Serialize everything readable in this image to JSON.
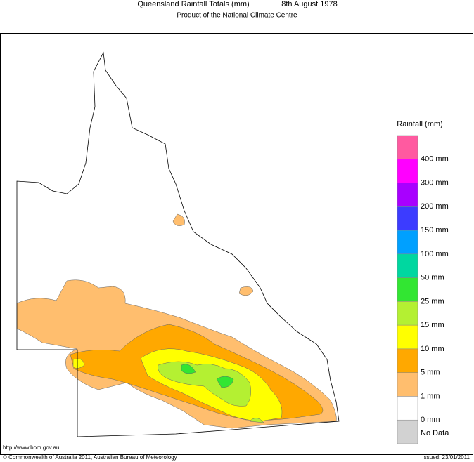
{
  "header": {
    "title": "Queensland Rainfall Totals (mm)",
    "date": "8th August 1978",
    "subtitle": "Product of the National Climate Centre"
  },
  "legend": {
    "title": "Rainfall (mm)",
    "swatches": [
      "#ff5aa0",
      "#ff00ff",
      "#a800ff",
      "#3c3cff",
      "#00a0ff",
      "#00d7a0",
      "#32e632",
      "#b4f032",
      "#ffff00",
      "#ffa800",
      "#ffbe6e",
      "#ffffff",
      "#d2d2d2"
    ],
    "labels": [
      "400 mm",
      "300 mm",
      "200 mm",
      "150 mm",
      "100 mm",
      "50 mm",
      "25 mm",
      "15 mm",
      "10 mm",
      "5 mm",
      "1 mm",
      "0 mm"
    ],
    "no_data": "No Data"
  },
  "footer": {
    "url": "http://www.bom.gov.au",
    "copyright": "© Commonwealth of Australia 2011, Australian Bureau of Meteorology",
    "issued": "Issued: 23/01/2011"
  }
}
